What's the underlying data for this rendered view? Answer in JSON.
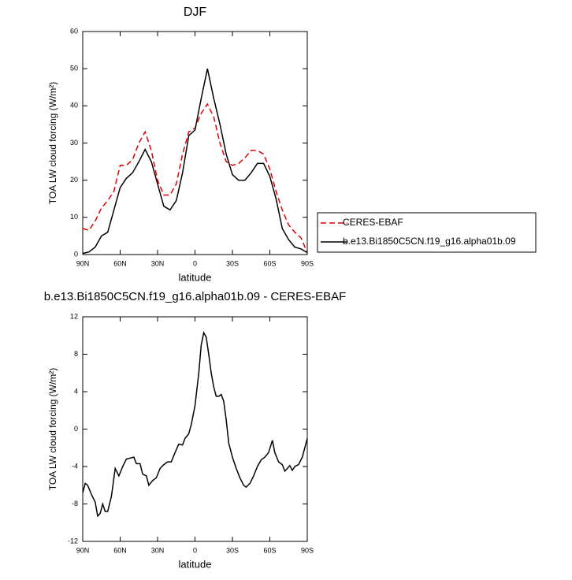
{
  "chart_data": [
    {
      "type": "line",
      "title": "DJF",
      "xlabel": "latitude",
      "ylabel": "TOA LW cloud forcing (W/m²)",
      "x": [
        90,
        85,
        80,
        75,
        70,
        65,
        60,
        55,
        50,
        45,
        40,
        35,
        30,
        25,
        20,
        15,
        10,
        5,
        0,
        -5,
        -10,
        -15,
        -20,
        -25,
        -30,
        -35,
        -40,
        -45,
        -50,
        -55,
        -60,
        -65,
        -70,
        -75,
        -80,
        -85,
        -90
      ],
      "series": [
        {
          "name": "CERES-EBAF",
          "color": "#e00000",
          "dashed": true,
          "values": [
            7,
            6.5,
            9,
            12.5,
            14.5,
            17,
            24,
            24,
            25.5,
            30,
            33,
            28,
            20,
            16,
            16,
            19,
            27,
            33,
            34,
            38,
            40.5,
            37,
            30,
            25,
            24,
            24.5,
            26,
            28,
            28,
            27,
            23,
            17,
            12,
            8,
            6,
            4.5,
            0.5
          ]
        },
        {
          "name": "b.e13.Bi1850C5CN.f19_g16.alpha01b.09",
          "color": "#000000",
          "dashed": false,
          "values": [
            0.3,
            0.7,
            2,
            5,
            6,
            12,
            18,
            20.5,
            22,
            25,
            28.3,
            25,
            19,
            13,
            12,
            14.5,
            22,
            32,
            33.5,
            42,
            50,
            42,
            35,
            27,
            21.5,
            20,
            20,
            22,
            24.5,
            24.5,
            21,
            15,
            7,
            4,
            2,
            1.5,
            0.5
          ]
        }
      ],
      "xlim": [
        90,
        -90
      ],
      "xticks": [
        {
          "value": 90,
          "label": "90N"
        },
        {
          "value": 60,
          "label": "60N"
        },
        {
          "value": 30,
          "label": "30N"
        },
        0,
        {
          "value": -30,
          "label": "30S"
        },
        {
          "value": -60,
          "label": "60S"
        },
        {
          "value": -90,
          "label": "90S"
        }
      ],
      "ylim": [
        0,
        60
      ],
      "yticks": [
        0,
        10,
        20,
        30,
        40,
        50,
        60
      ],
      "legend": "right"
    },
    {
      "type": "line",
      "title": "b.e13.Bi1850C5CN.f19_g16.alpha01b.09 - CERES-EBAF",
      "xlabel": "latitude",
      "ylabel": "TOA LW cloud forcing (W/m²)",
      "x": [
        90,
        88,
        86,
        83,
        80,
        78,
        76,
        74,
        72,
        70,
        67,
        64,
        61,
        58,
        55,
        52,
        49,
        47,
        44,
        42,
        39,
        37,
        34,
        31,
        28,
        25,
        22,
        19,
        16,
        13,
        10,
        8,
        5,
        3,
        0,
        -3,
        -5,
        -7,
        -9,
        -11,
        -13,
        -15,
        -17,
        -19,
        -21,
        -23,
        -25,
        -27,
        -30,
        -33,
        -36,
        -39,
        -41,
        -44,
        -47,
        -50,
        -53,
        -56,
        -59,
        -62,
        -64,
        -67,
        -70,
        -72,
        -74,
        -76,
        -78,
        -80,
        -83,
        -86,
        -90
      ],
      "values": [
        -6.8,
        -5.8,
        -6,
        -7,
        -7.8,
        -9.3,
        -9,
        -8,
        -8.8,
        -8.8,
        -7.2,
        -4.2,
        -5,
        -4,
        -3.2,
        -3.1,
        -3,
        -3.7,
        -3.7,
        -4.8,
        -5,
        -6,
        -5.5,
        -5.2,
        -4.2,
        -3.8,
        -3.5,
        -3.5,
        -2.5,
        -1.6,
        -1.7,
        -1,
        -0.5,
        0.5,
        2.5,
        6,
        9,
        10.3,
        9.8,
        8,
        6,
        4.5,
        3.5,
        3.5,
        3.7,
        3,
        1,
        -1.5,
        -3,
        -4.2,
        -5.2,
        -6,
        -6.2,
        -5.8,
        -5,
        -4,
        -3.3,
        -3,
        -2.5,
        -1.2,
        -2.5,
        -3.5,
        -3.8,
        -4.5,
        -4.2,
        -3.9,
        -4.4,
        -4,
        -3.8,
        -3,
        -1
      ],
      "color": "#000000",
      "xlim": [
        90,
        -90
      ],
      "xticks": [
        {
          "value": 90,
          "label": "90N"
        },
        {
          "value": 60,
          "label": "60N"
        },
        {
          "value": 30,
          "label": "30N"
        },
        0,
        {
          "value": -30,
          "label": "30S"
        },
        {
          "value": -60,
          "label": "60S"
        },
        {
          "value": -90,
          "label": "90S"
        }
      ],
      "ylim": [
        -12,
        12
      ],
      "yticks": [
        -12,
        -8,
        -4,
        0,
        4,
        8,
        12
      ]
    }
  ]
}
